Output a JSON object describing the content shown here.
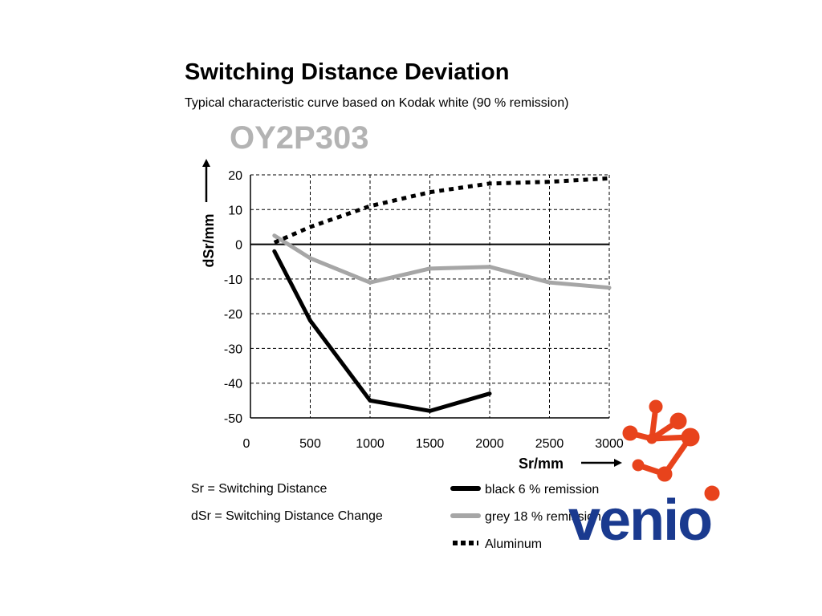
{
  "header": {
    "title": "Switching Distance Deviation",
    "subtitle": "Typical characteristic curve based on Kodak white (90 % remission)",
    "model": "OY2P303"
  },
  "definitions": {
    "sr": "Sr = Switching Distance",
    "dsr": "dSr = Switching Distance Change"
  },
  "logo": {
    "text": "venio",
    "text_color": "#1a3a8f",
    "mark_color": "#e8431c"
  },
  "chart_data": {
    "type": "line",
    "title": "Switching Distance Deviation",
    "xlabel": "Sr/mm",
    "ylabel": "dSr/mm",
    "xlim": [
      0,
      3000
    ],
    "ylim": [
      -50,
      20
    ],
    "xticks": [
      0,
      500,
      1000,
      1500,
      2000,
      2500,
      3000
    ],
    "yticks": [
      -50,
      -40,
      -30,
      -20,
      -10,
      0,
      10,
      20
    ],
    "grid": true,
    "legend_position": "bottom-right",
    "series": [
      {
        "name": "black 6 % remission",
        "color": "#000000",
        "style": "solid",
        "x": [
          200,
          500,
          1000,
          1500,
          2000
        ],
        "y": [
          -2,
          -22,
          -45,
          -48,
          -43
        ]
      },
      {
        "name": "grey 18 % remission",
        "color": "#a6a6a6",
        "style": "solid",
        "x": [
          200,
          500,
          1000,
          1500,
          2000,
          2500,
          3000
        ],
        "y": [
          2.5,
          -4,
          -11,
          -7,
          -6.5,
          -11,
          -12.5
        ]
      },
      {
        "name": "Aluminum",
        "color": "#000000",
        "style": "dotted",
        "x": [
          200,
          500,
          1000,
          1500,
          2000,
          2500,
          3000
        ],
        "y": [
          0.5,
          5,
          11,
          15,
          17.5,
          18,
          19
        ]
      }
    ]
  }
}
